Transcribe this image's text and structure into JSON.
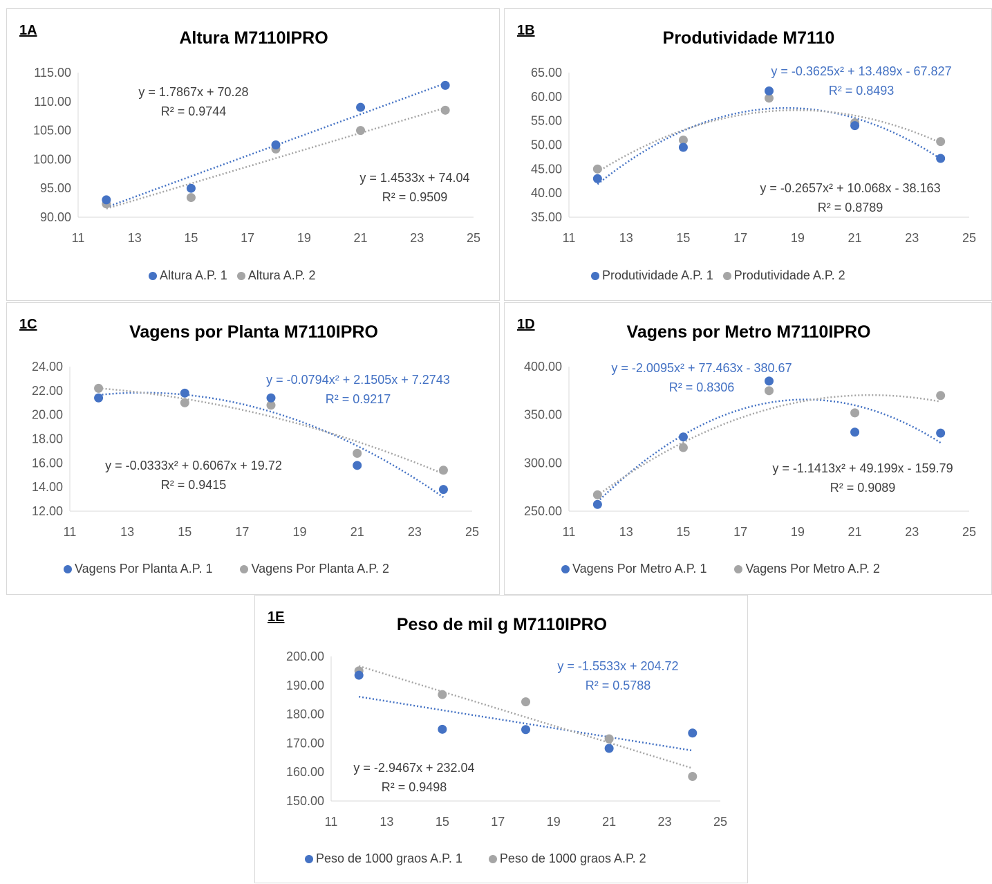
{
  "chart_data": [
    {
      "id": "1A",
      "type": "scatter",
      "panel_label": "1A",
      "title": "Altura M7110IPRO",
      "xlim": [
        11,
        25
      ],
      "ylim": [
        90,
        115
      ],
      "xticks": [
        "11",
        "13",
        "15",
        "17",
        "19",
        "21",
        "23",
        "25"
      ],
      "yticks": [
        "90.00",
        "95.00",
        "100.00",
        "105.00",
        "110.00",
        "115.00"
      ],
      "series": [
        {
          "name": "Altura A.P. 1",
          "color": "#4472c4",
          "x": [
            12,
            15,
            18,
            21,
            24
          ],
          "y": [
            93.0,
            95.0,
            102.5,
            109.0,
            112.8
          ],
          "trend": {
            "type": "linear",
            "coef": [
              70.28,
              1.7867
            ]
          },
          "eq_lines": [
            "y = 1.7867x + 70.28",
            "R² = 0.9744"
          ]
        },
        {
          "name": "Altura A.P. 2",
          "color": "#a5a5a5",
          "x": [
            12,
            15,
            18,
            21,
            24
          ],
          "y": [
            92.3,
            93.4,
            101.8,
            105.0,
            108.5
          ],
          "trend": {
            "type": "linear",
            "coef": [
              74.04,
              1.4533
            ]
          },
          "eq_lines": [
            "y = 1.4533x + 74.04",
            "R² = 0.9509"
          ]
        }
      ]
    },
    {
      "id": "1B",
      "type": "scatter",
      "panel_label": "1B",
      "title": "Produtividade M7110",
      "xlim": [
        11,
        25
      ],
      "ylim": [
        35,
        65
      ],
      "xticks": [
        "11",
        "13",
        "15",
        "17",
        "19",
        "21",
        "23",
        "25"
      ],
      "yticks": [
        "35.00",
        "40.00",
        "45.00",
        "50.00",
        "55.00",
        "60.00",
        "65.00"
      ],
      "series": [
        {
          "name": "Produtividade A.P. 1",
          "color": "#4472c4",
          "x": [
            12,
            15,
            18,
            21,
            24
          ],
          "y": [
            43.0,
            49.5,
            61.2,
            54.0,
            47.2
          ],
          "trend": {
            "type": "poly2",
            "coef": [
              -67.827,
              13.489,
              -0.3625
            ]
          },
          "eq_lines": [
            "y = -0.3625x² + 13.489x - 67.827",
            "R² = 0.8493"
          ]
        },
        {
          "name": "Produtividade A.P. 2",
          "color": "#a5a5a5",
          "x": [
            12,
            15,
            18,
            21,
            24
          ],
          "y": [
            45.0,
            51.0,
            59.7,
            54.6,
            50.7
          ],
          "trend": {
            "type": "poly2",
            "coef": [
              -38.163,
              10.068,
              -0.2657
            ]
          },
          "eq_lines": [
            "y = -0.2657x² + 10.068x - 38.163",
            "R² = 0.8789"
          ]
        }
      ]
    },
    {
      "id": "1C",
      "type": "scatter",
      "panel_label": "1C",
      "title": "Vagens por Planta M7110IPRO",
      "xlim": [
        11,
        25
      ],
      "ylim": [
        12,
        24
      ],
      "xticks": [
        "11",
        "13",
        "15",
        "17",
        "19",
        "21",
        "23",
        "25"
      ],
      "yticks": [
        "12.00",
        "14.00",
        "16.00",
        "18.00",
        "20.00",
        "22.00",
        "24.00"
      ],
      "series": [
        {
          "name": "Vagens Por Planta A.P. 1",
          "color": "#4472c4",
          "x": [
            12,
            15,
            18,
            21,
            24
          ],
          "y": [
            21.4,
            21.8,
            21.4,
            15.8,
            13.8
          ],
          "trend": {
            "type": "poly2",
            "coef": [
              7.2743,
              2.1505,
              -0.0794
            ]
          },
          "eq_lines": [
            "y = -0.0794x² + 2.1505x + 7.2743",
            "R² = 0.9217"
          ]
        },
        {
          "name": "Vagens Por Planta A.P. 2",
          "color": "#a5a5a5",
          "x": [
            12,
            15,
            18,
            21,
            24
          ],
          "y": [
            22.2,
            21.0,
            20.8,
            16.8,
            15.4
          ],
          "trend": {
            "type": "poly2",
            "coef": [
              19.72,
              0.6067,
              -0.0333
            ]
          },
          "eq_lines": [
            "y = -0.0333x² + 0.6067x + 19.72",
            "R² = 0.9415"
          ]
        }
      ]
    },
    {
      "id": "1D",
      "type": "scatter",
      "panel_label": "1D",
      "title": "Vagens por Metro M7110IPRO",
      "xlim": [
        11,
        25
      ],
      "ylim": [
        250,
        400
      ],
      "xticks": [
        "11",
        "13",
        "15",
        "17",
        "19",
        "21",
        "23",
        "25"
      ],
      "yticks": [
        "250.00",
        "300.00",
        "350.00",
        "400.00"
      ],
      "series": [
        {
          "name": "Vagens Por Metro A.P. 1",
          "color": "#4472c4",
          "x": [
            12,
            15,
            18,
            21,
            24
          ],
          "y": [
            257,
            327,
            385,
            332,
            331
          ],
          "trend": {
            "type": "poly2",
            "coef": [
              -380.67,
              77.463,
              -2.0095
            ]
          },
          "eq_lines": [
            "y = -2.0095x² + 77.463x - 380.67",
            "R² = 0.8306"
          ]
        },
        {
          "name": "Vagens Por Metro A.P. 2",
          "color": "#a5a5a5",
          "x": [
            12,
            15,
            18,
            21,
            24
          ],
          "y": [
            267,
            316,
            375,
            352,
            370
          ],
          "trend": {
            "type": "poly2",
            "coef": [
              -159.79,
              49.199,
              -1.1413
            ]
          },
          "eq_lines": [
            "y = -1.1413x² + 49.199x - 159.79",
            "R² = 0.9089"
          ]
        }
      ]
    },
    {
      "id": "1E",
      "type": "scatter",
      "panel_label": "1E",
      "title": "Peso de mil g M7110IPRO",
      "xlim": [
        11,
        25
      ],
      "ylim": [
        150,
        200
      ],
      "xticks": [
        "11",
        "13",
        "15",
        "17",
        "19",
        "21",
        "23",
        "25"
      ],
      "yticks": [
        "150.00",
        "160.00",
        "170.00",
        "180.00",
        "190.00",
        "200.00"
      ],
      "series": [
        {
          "name": "Peso de 1000 graos A.P. 1",
          "color": "#4472c4",
          "x": [
            12,
            15,
            18,
            21,
            24
          ],
          "y": [
            193.5,
            174.8,
            174.7,
            168.2,
            173.5
          ],
          "trend": {
            "type": "linear",
            "coef": [
              204.72,
              -1.5533
            ]
          },
          "eq_lines": [
            "y = -1.5533x + 204.72",
            "R² = 0.5788"
          ]
        },
        {
          "name": "Peso de 1000 graos A.P. 2",
          "color": "#a5a5a5",
          "x": [
            12,
            15,
            18,
            21,
            24
          ],
          "y": [
            195.0,
            186.8,
            184.3,
            171.5,
            158.5
          ],
          "trend": {
            "type": "linear",
            "coef": [
              232.04,
              -2.9467
            ]
          },
          "eq_lines": [
            "y = -2.9467x + 232.04",
            "R² = 0.9498"
          ]
        }
      ]
    }
  ]
}
